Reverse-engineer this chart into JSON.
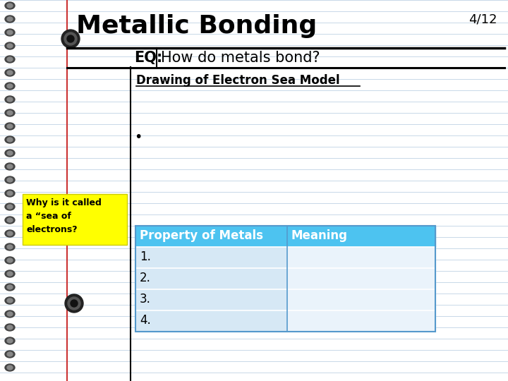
{
  "page_num": "4/12",
  "title": "Metallic Bonding",
  "eq_label": "EQ:",
  "eq_text": "How do metals bond?",
  "section_title": "Drawing of Electron Sea Model",
  "bullet": "•",
  "sticky_text": "Why is it called\na “sea of\nelectrons?",
  "sticky_color": "#FFFF00",
  "table_header": [
    "Property of Metals",
    "Meaning"
  ],
  "table_rows": [
    "1.",
    "2.",
    "3.",
    "4."
  ],
  "header_bg": "#4DC3F0",
  "row_bg_alt": "#D6E8F5",
  "row_bg_white": "#EEF5FB",
  "bg_color": "#FFFFFF",
  "line_color": "#C8D8E8",
  "margin_line_color": "#CC3333",
  "text_color": "#000000",
  "title_fontsize": 26,
  "eq_fontsize": 15,
  "section_fontsize": 12,
  "table_header_fontsize": 12,
  "table_row_fontsize": 12,
  "sticky_fontsize": 9,
  "pagenum_fontsize": 13
}
